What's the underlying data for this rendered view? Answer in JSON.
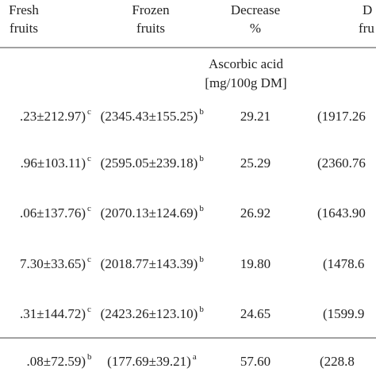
{
  "table": {
    "header": {
      "fresh": [
        "Fresh",
        "fruits"
      ],
      "frozen": [
        "Frozen",
        "fruits"
      ],
      "decrease": [
        "Decrease",
        "%"
      ],
      "dried": [
        "D",
        "fru"
      ]
    },
    "unit": [
      "Ascorbic acid",
      "[mg/100g DM]"
    ],
    "rows": [
      {
        "fresh": ".23±212.97)",
        "fresh_sup": "c",
        "frozen": "(2345.43±155.25)",
        "frozen_sup": "b",
        "decrease": "29.21",
        "dried": "(1917.26"
      },
      {
        "fresh": ".96±103.11)",
        "fresh_sup": "c",
        "frozen": "(2595.05±239.18)",
        "frozen_sup": "b",
        "decrease": "25.29",
        "dried": "(2360.76"
      },
      {
        "fresh": ".06±137.76)",
        "fresh_sup": "c",
        "frozen": "(2070.13±124.69)",
        "frozen_sup": "b",
        "decrease": "26.92",
        "dried": "(1643.90"
      },
      {
        "fresh": "7.30±33.65)",
        "fresh_sup": "c",
        "frozen": "(2018.77±143.39)",
        "frozen_sup": "b",
        "decrease": "19.80",
        "dried": "(1478.6"
      },
      {
        "fresh": ".31±144.72)",
        "fresh_sup": "c",
        "frozen": "(2423.26±123.10)",
        "frozen_sup": "b",
        "decrease": "24.65",
        "dried": "(1599.9"
      },
      {
        "fresh": ".08±72.59)",
        "fresh_sup": "b",
        "frozen": "(177.69±39.21)",
        "frozen_sup": "a",
        "decrease": "57.60",
        "dried": "(228.8"
      }
    ]
  }
}
